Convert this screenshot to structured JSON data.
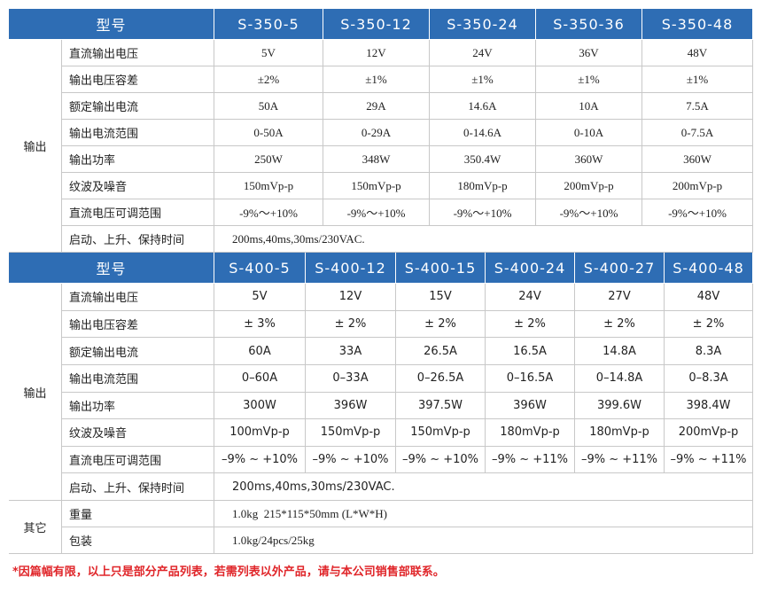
{
  "table1": {
    "header": [
      "型号",
      "S-350-5",
      "S-350-12",
      "S-350-24",
      "S-350-36",
      "S-350-48"
    ],
    "group": "输出",
    "rows": [
      {
        "label": "直流输出电压",
        "cells": [
          "5V",
          "12V",
          "24V",
          "36V",
          "48V"
        ]
      },
      {
        "label": "输出电压容差",
        "cells": [
          "±2%",
          "±1%",
          "±1%",
          "±1%",
          "±1%"
        ]
      },
      {
        "label": "额定输出电流",
        "cells": [
          "50A",
          "29A",
          "14.6A",
          "10A",
          "7.5A"
        ]
      },
      {
        "label": "输出电流范围",
        "cells": [
          "0-50A",
          "0-29A",
          "0-14.6A",
          "0-10A",
          "0-7.5A"
        ]
      },
      {
        "label": "输出功率",
        "cells": [
          "250W",
          "348W",
          "350.4W",
          "360W",
          "360W"
        ]
      },
      {
        "label": "纹波及噪音",
        "cells": [
          "150mVp-p",
          "150mVp-p",
          "180mVp-p",
          "200mVp-p",
          "200mVp-p"
        ]
      },
      {
        "label": "直流电压可调范围",
        "cells": [
          "-9%～+10%",
          "-9%～+10%",
          "-9%～+10%",
          "-9%～+10%",
          "-9%～+10%"
        ]
      }
    ],
    "note_row": {
      "label": "启动、上升、保持时间",
      "text": "200ms,40ms,30ms/230VAC."
    }
  },
  "table2": {
    "header": [
      "型号",
      "S-400-5",
      "S-400-12",
      "S-400-15",
      "S-400-24",
      "S-400-27",
      "S-400-48"
    ],
    "group": "输出",
    "rows": [
      {
        "label": "直流输出电压",
        "cells": [
          "5V",
          "12V",
          "15V",
          "24V",
          "27V",
          "48V"
        ]
      },
      {
        "label": "输出电压容差",
        "cells": [
          "± 3%",
          "± 2%",
          "± 2%",
          "± 2%",
          "± 2%",
          "± 2%"
        ]
      },
      {
        "label": "额定输出电流",
        "cells": [
          "60A",
          "33A",
          "26.5A",
          "16.5A",
          "14.8A",
          "8.3A"
        ]
      },
      {
        "label": "输出电流范围",
        "cells": [
          "0–60A",
          "0–33A",
          "0–26.5A",
          "0–16.5A",
          "0–14.8A",
          "0–8.3A"
        ]
      },
      {
        "label": "输出功率",
        "cells": [
          "300W",
          "396W",
          "397.5W",
          "396W",
          "399.6W",
          "398.4W"
        ]
      },
      {
        "label": "纹波及噪音",
        "cells": [
          "100mVp-p",
          "150mVp-p",
          "150mVp-p",
          "180mVp-p",
          "180mVp-p",
          "200mVp-p"
        ]
      },
      {
        "label": "直流电压可调范围",
        "cells": [
          "–9% ~ +10%",
          "–9% ~ +10%",
          "–9% ~ +10%",
          "–9% ~ +11%",
          "–9% ~ +11%",
          "–9% ~ +11%"
        ]
      }
    ],
    "note_row": {
      "label": "启动、上升、保持时间",
      "text": "200ms,40ms,30ms/230VAC."
    }
  },
  "other": {
    "group": "其它",
    "rows": [
      {
        "label": "重量",
        "text": "1.0kg  215*115*50mm (L*W*H)"
      },
      {
        "label": "包装",
        "text": "1.0kg/24pcs/25kg"
      }
    ]
  },
  "footnote": "*因篇幅有限，以上只是部分产品列表，若需列表以外产品，请与本公司销售部联系。"
}
